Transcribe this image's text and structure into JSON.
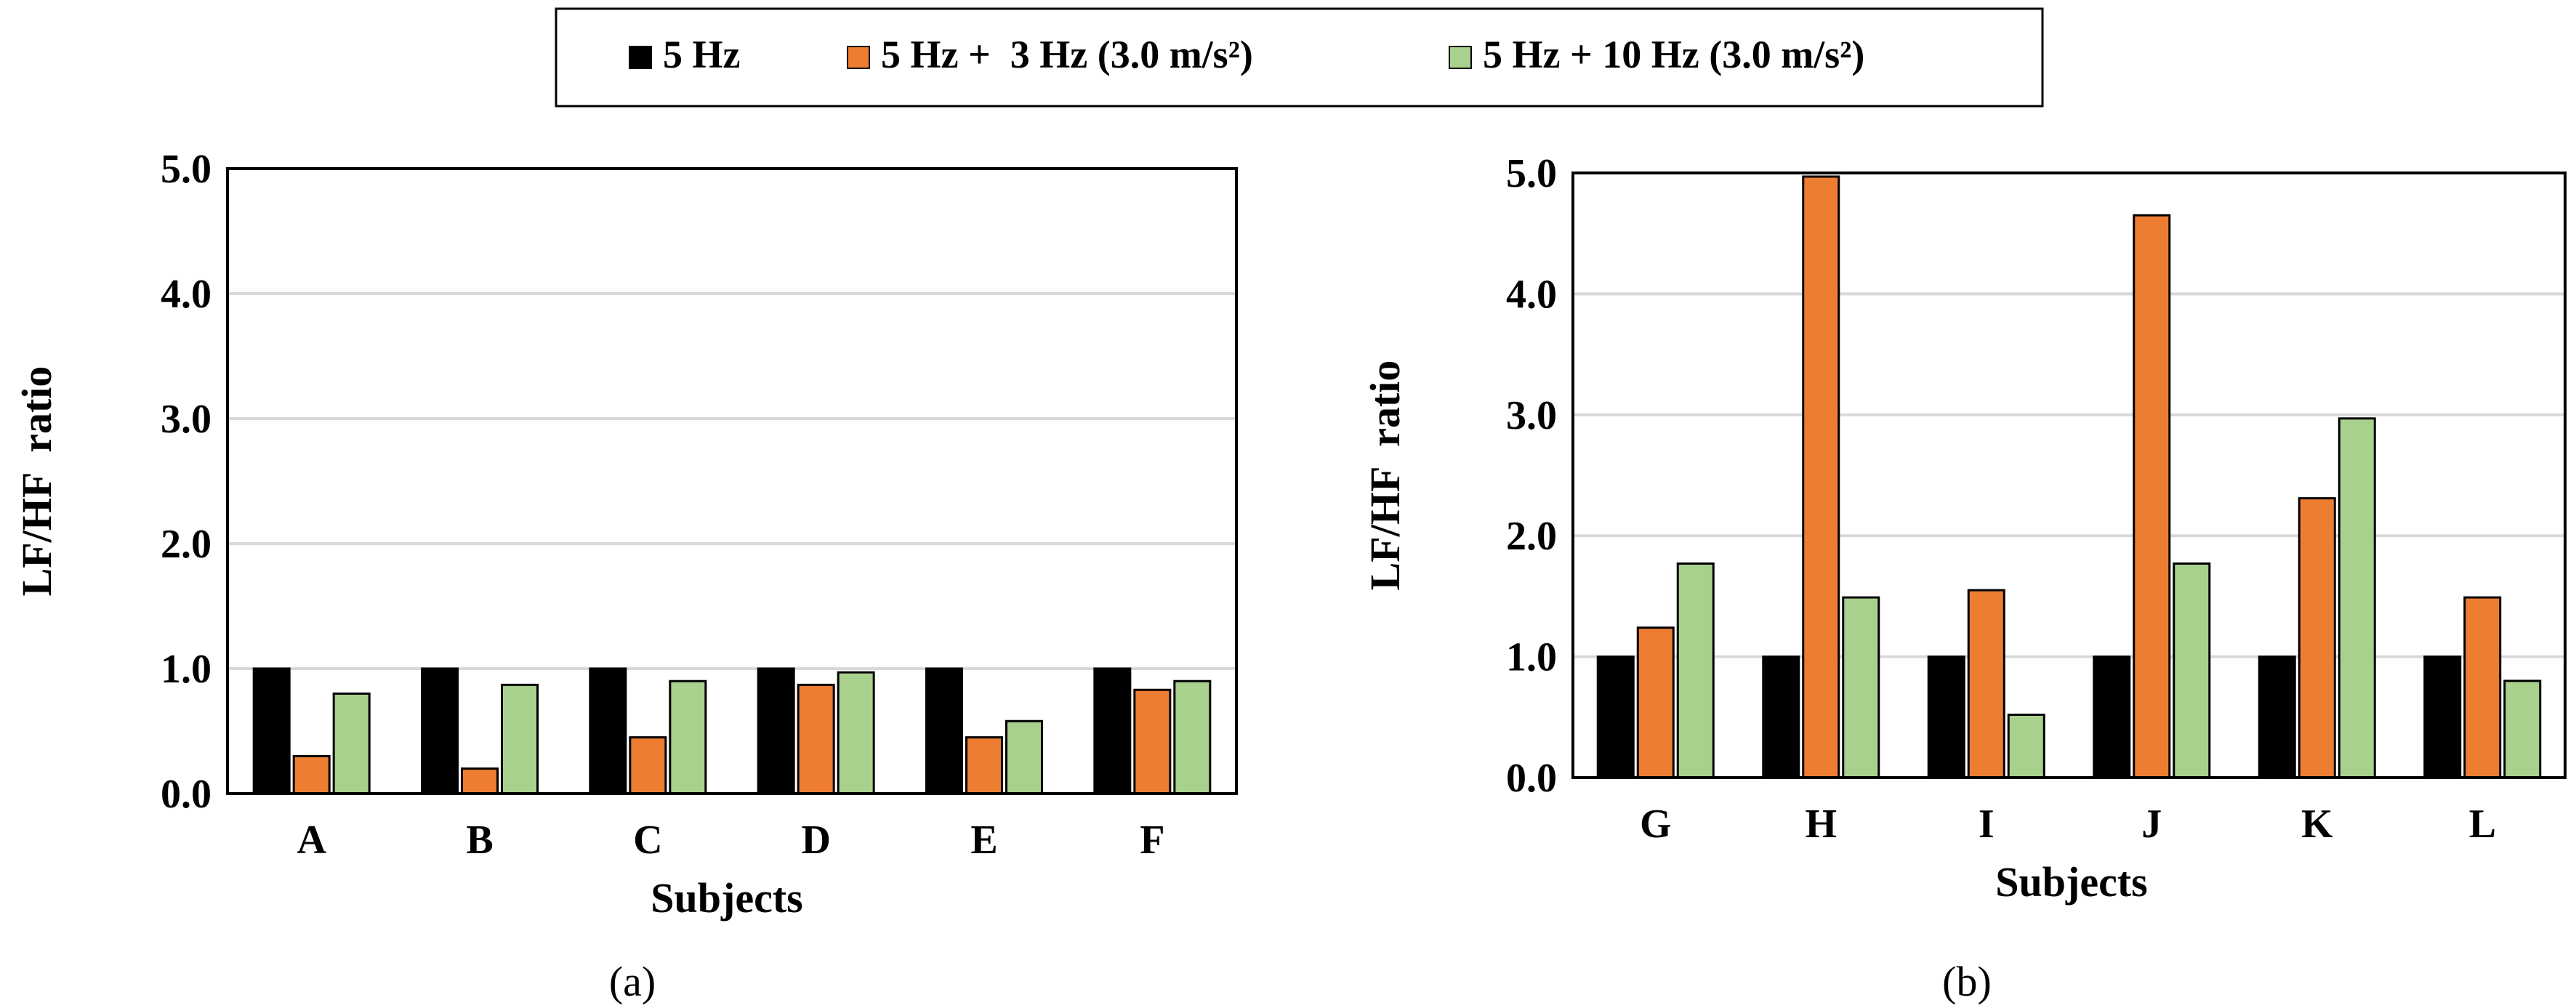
{
  "legend": {
    "entries": [
      {
        "label": "5 Hz",
        "color": "#000000"
      },
      {
        "label": "5 Hz +  3 Hz (3.0 m/s²)",
        "color": "#ED7D31"
      },
      {
        "label": "5 Hz + 10 Hz (3.0 m/s²)",
        "color": "#A9D18E"
      }
    ]
  },
  "chart_data": [
    {
      "type": "bar",
      "panel_label": "(a)",
      "xlabel": "Subjects",
      "ylabel": "LF/HF  ratio",
      "ylim": [
        0,
        5
      ],
      "yticks": [
        "0.0",
        "1.0",
        "2.0",
        "3.0",
        "4.0",
        "5.0"
      ],
      "categories": [
        "A",
        "B",
        "C",
        "D",
        "E",
        "F"
      ],
      "series": [
        {
          "name": "5 Hz",
          "color": "#000000",
          "values": [
            1.0,
            1.0,
            1.0,
            1.0,
            1.0,
            1.0
          ]
        },
        {
          "name": "5 Hz +  3 Hz (3.0 m/s²)",
          "color": "#ED7D31",
          "values": [
            0.3,
            0.2,
            0.45,
            0.87,
            0.45,
            0.83
          ]
        },
        {
          "name": "5 Hz + 10 Hz (3.0 m/s²)",
          "color": "#A9D18E",
          "values": [
            0.8,
            0.87,
            0.9,
            0.97,
            0.58,
            0.9
          ]
        }
      ]
    },
    {
      "type": "bar",
      "panel_label": "(b)",
      "xlabel": "Subjects",
      "ylabel": "LF/HF  ratio",
      "ylim": [
        0,
        5
      ],
      "yticks": [
        "0.0",
        "1.0",
        "2.0",
        "3.0",
        "4.0",
        "5.0"
      ],
      "categories": [
        "G",
        "H",
        "I",
        "J",
        "K",
        "L"
      ],
      "series": [
        {
          "name": "5 Hz",
          "color": "#000000",
          "values": [
            1.0,
            1.0,
            1.0,
            1.0,
            1.0,
            1.0
          ]
        },
        {
          "name": "5 Hz +  3 Hz (3.0 m/s²)",
          "color": "#ED7D31",
          "values": [
            1.24,
            4.97,
            1.55,
            4.65,
            2.31,
            1.49
          ]
        },
        {
          "name": "5 Hz + 10 Hz (3.0 m/s²)",
          "color": "#A9D18E",
          "values": [
            1.77,
            1.49,
            0.52,
            1.77,
            2.97,
            0.8
          ]
        }
      ]
    }
  ]
}
